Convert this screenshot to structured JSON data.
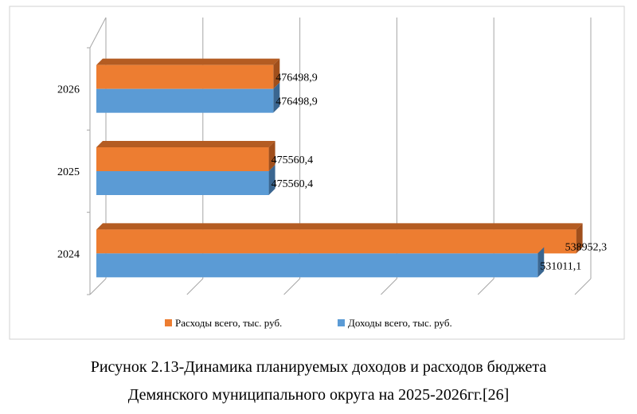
{
  "chart_data": {
    "type": "bar",
    "orientation": "horizontal",
    "style": "3d-clustered",
    "categories": [
      "2024",
      "2025",
      "2026"
    ],
    "series": [
      {
        "name": "Доходы всего, тыс. руб.",
        "color": "#5B9BD5",
        "values": [
          531011.1,
          475560.4,
          476498.9
        ],
        "labels": [
          "531011,1",
          "475560,4",
          "476498,9"
        ]
      },
      {
        "name": "Расходы всего, тыс. руб.",
        "color": "#ED7D31",
        "values": [
          538952.3,
          475560.4,
          476498.9
        ],
        "labels": [
          "538952,3",
          "475560,4",
          "476498,9"
        ]
      }
    ],
    "xlim": [
      440000,
      540000
    ],
    "xtick_step": 20000,
    "grid": true,
    "legend": "bottom",
    "title": "",
    "xlabel": "",
    "ylabel": ""
  },
  "caption": {
    "line1": "Рисунок 2.13-Динамика планируемых доходов и расходов бюджета",
    "line2": "Демянского муниципального округа на 2025-2026гг.[26]"
  }
}
